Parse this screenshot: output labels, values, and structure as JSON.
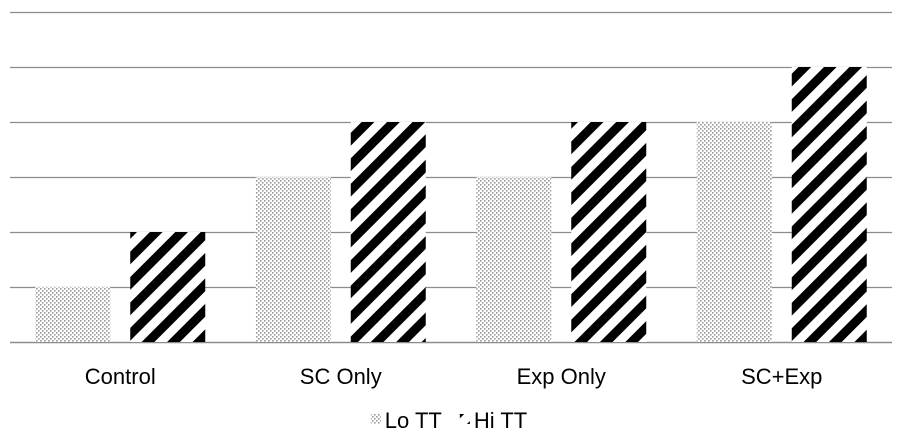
{
  "chart_data": {
    "type": "bar",
    "categories": [
      "Control",
      "SC Only",
      "Exp Only",
      "SC+Exp"
    ],
    "series": [
      {
        "name": "Lo TT",
        "values": [
          1,
          3,
          3,
          4
        ],
        "pattern": "dots"
      },
      {
        "name": "Hi TT",
        "values": [
          2,
          4,
          4,
          5
        ],
        "pattern": "diagonal-stripes"
      }
    ],
    "ylim": [
      0,
      6
    ],
    "grid": true,
    "legend_position": "bottom-center",
    "colors": {
      "gridline": "#8c8c8c",
      "stripe": "#000000",
      "dot": "#9a9a9a"
    }
  }
}
